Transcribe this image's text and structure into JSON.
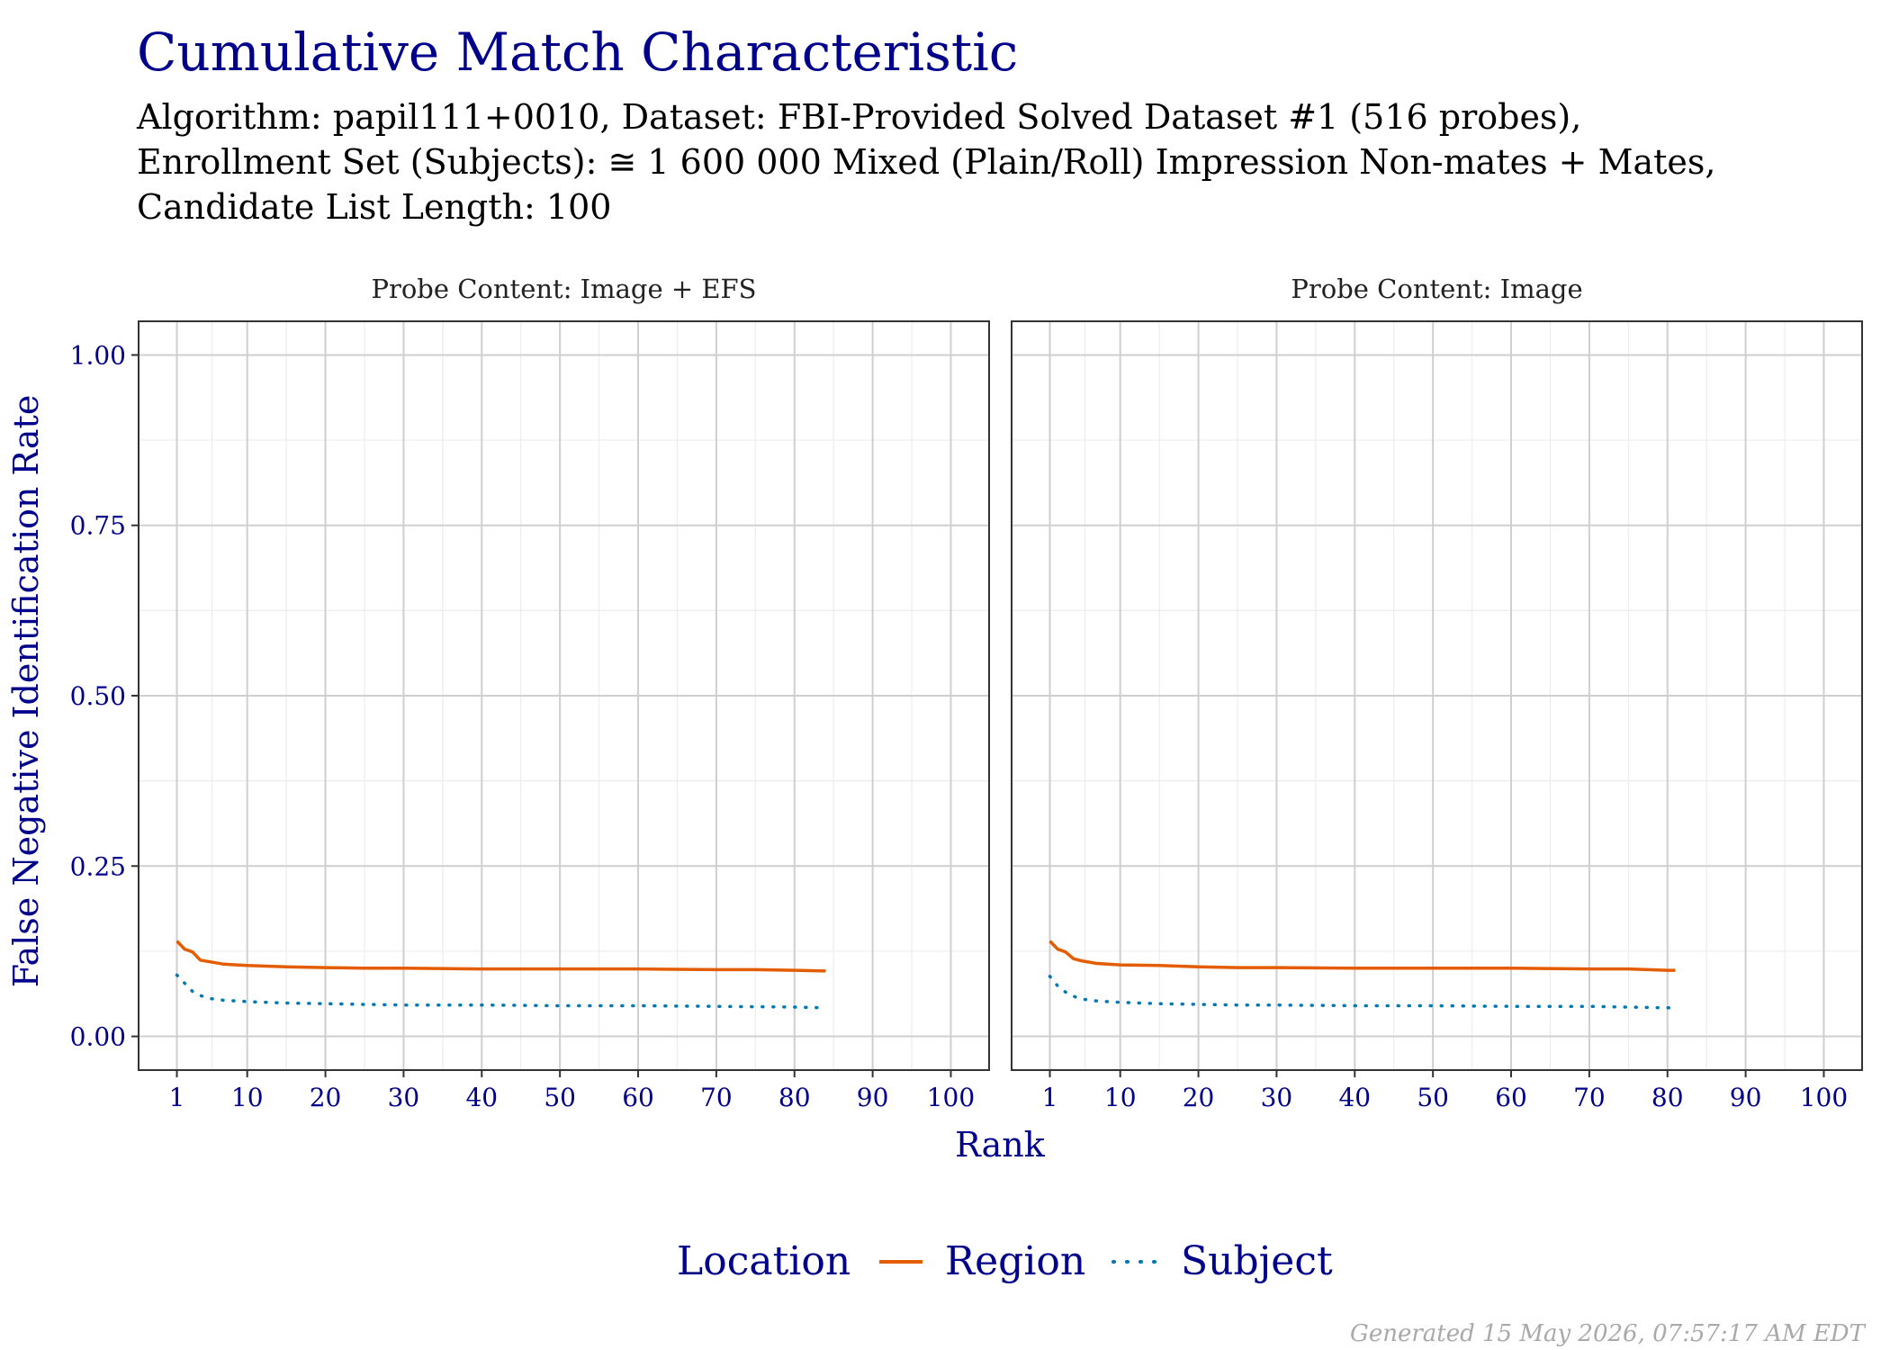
{
  "colors": {
    "region": "#e35d00",
    "subject": "#0079b3",
    "accent_text": "#00008b",
    "grid_major": "#cfcfcf",
    "grid_minor": "#ececec"
  },
  "chart_data": {
    "type": "line",
    "title": "Cumulative Match Characteristic",
    "subtitle": [
      "Algorithm: papil111+0010, Dataset: FBI-Provided Solved Dataset #1 (516 probes),",
      "Enrollment Set (Subjects): ≅ 1 600 000 Mixed (Plain/Roll) Impression Non-mates + Mates,",
      "Candidate List Length: 100"
    ],
    "xlabel": "Rank",
    "ylabel": "False Negative Identification Rate",
    "xlim": [
      1,
      100
    ],
    "ylim": [
      0,
      1
    ],
    "x_ticks": [
      1,
      10,
      20,
      30,
      40,
      50,
      60,
      70,
      80,
      90,
      100
    ],
    "x_tick_labels": [
      "1",
      "10",
      "20",
      "30",
      "40",
      "50",
      "60",
      "70",
      "80",
      "90",
      "100"
    ],
    "y_ticks": [
      0,
      0.25,
      0.5,
      0.75,
      1.0
    ],
    "y_tick_labels": [
      "0.00",
      "0.25",
      "0.50",
      "0.75",
      "1.00"
    ],
    "grid": true,
    "legend": {
      "title": "Location",
      "placement": "bottom",
      "entries": [
        {
          "name": "Region",
          "color": "#e35d00",
          "dash": "solid"
        },
        {
          "name": "Subject",
          "color": "#0079b3",
          "dash": "dotted"
        }
      ]
    },
    "panels": [
      {
        "strip": "Probe Content: Image + EFS",
        "series": [
          {
            "name": "Region",
            "color": "#e35d00",
            "dash": "solid",
            "x": [
              1,
              2,
              3,
              4,
              5,
              7,
              10,
              15,
              20,
              25,
              30,
              40,
              50,
              60,
              70,
              75,
              80,
              84
            ],
            "y": [
              0.14,
              0.128,
              0.124,
              0.112,
              0.11,
              0.106,
              0.104,
              0.102,
              0.101,
              0.1,
              0.1,
              0.099,
              0.099,
              0.099,
              0.098,
              0.098,
              0.097,
              0.096
            ]
          },
          {
            "name": "Subject",
            "color": "#0079b3",
            "dash": "dotted",
            "x": [
              1,
              2,
              3,
              4,
              5,
              7,
              10,
              15,
              20,
              25,
              30,
              40,
              50,
              60,
              70,
              80,
              84
            ],
            "y": [
              0.09,
              0.078,
              0.066,
              0.06,
              0.056,
              0.053,
              0.051,
              0.049,
              0.048,
              0.047,
              0.046,
              0.046,
              0.045,
              0.045,
              0.044,
              0.043,
              0.042
            ]
          }
        ]
      },
      {
        "strip": "Probe Content: Image",
        "series": [
          {
            "name": "Region",
            "color": "#e35d00",
            "dash": "solid",
            "x": [
              1,
              2,
              3,
              4,
              5,
              7,
              10,
              15,
              20,
              25,
              30,
              40,
              50,
              60,
              70,
              75,
              80,
              81
            ],
            "y": [
              0.14,
              0.128,
              0.124,
              0.114,
              0.111,
              0.107,
              0.105,
              0.104,
              0.102,
              0.101,
              0.101,
              0.1,
              0.1,
              0.1,
              0.099,
              0.099,
              0.097,
              0.097
            ]
          },
          {
            "name": "Subject",
            "color": "#0079b3",
            "dash": "dotted",
            "x": [
              1,
              2,
              3,
              4,
              5,
              7,
              10,
              15,
              20,
              25,
              30,
              40,
              50,
              60,
              70,
              80,
              81
            ],
            "y": [
              0.088,
              0.074,
              0.065,
              0.059,
              0.055,
              0.052,
              0.05,
              0.048,
              0.047,
              0.046,
              0.046,
              0.045,
              0.045,
              0.044,
              0.044,
              0.042,
              0.042
            ]
          }
        ]
      }
    ]
  },
  "caption": "Generated 15 May 2026, 07:57:17 AM EDT"
}
